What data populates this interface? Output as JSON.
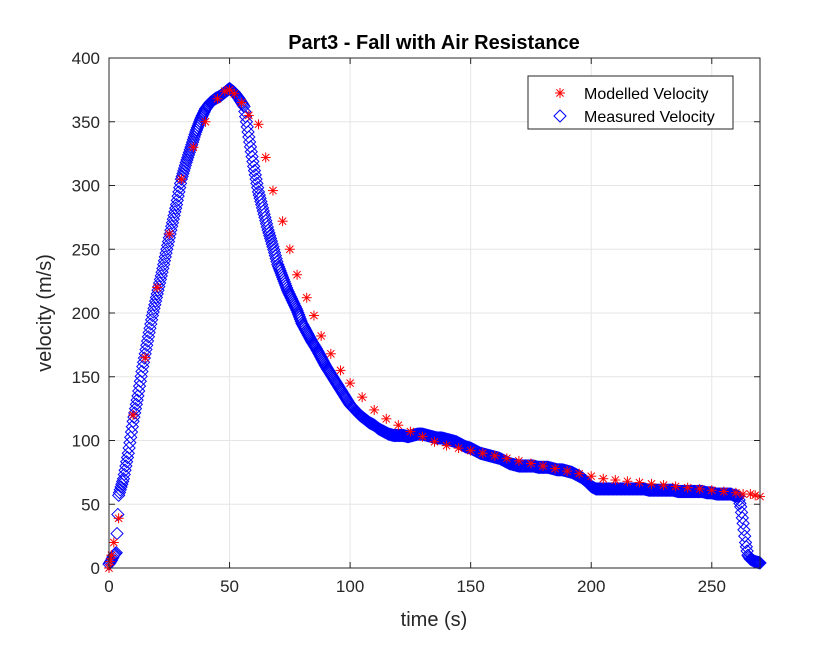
{
  "chart_data": {
    "type": "scatter",
    "title": "Part3 - Fall with Air Resistance",
    "xlabel": "time (s)",
    "ylabel": "velocity (m/s)",
    "xlim": [
      0,
      270
    ],
    "ylim": [
      0,
      400
    ],
    "xticks": [
      0,
      50,
      100,
      150,
      200,
      250
    ],
    "yticks": [
      0,
      50,
      100,
      150,
      200,
      250,
      300,
      350,
      400
    ],
    "xtick_labels": [
      "0",
      "50",
      "100",
      "150",
      "200",
      "250"
    ],
    "ytick_labels": [
      "0",
      "50",
      "100",
      "150",
      "200",
      "250",
      "300",
      "350",
      "400"
    ],
    "grid": true,
    "legend_position": "top-right",
    "series": [
      {
        "name": "Modelled Velocity",
        "marker": "asterisk",
        "color": "#ff0000",
        "x": [
          0,
          0.5,
          1,
          2,
          4,
          10,
          15,
          20,
          25,
          30,
          35,
          40,
          45,
          48,
          50,
          52,
          55,
          58,
          62,
          65,
          68,
          72,
          75,
          78,
          82,
          85,
          88,
          92,
          96,
          100,
          105,
          110,
          115,
          120,
          125,
          130,
          135,
          140,
          145,
          150,
          155,
          160,
          165,
          170,
          175,
          180,
          185,
          190,
          195,
          200,
          205,
          210,
          215,
          220,
          225,
          230,
          235,
          240,
          245,
          250,
          255,
          260,
          263,
          266,
          268,
          270
        ],
        "y": [
          0,
          5,
          10,
          20,
          39,
          120,
          165,
          220,
          262,
          305,
          330,
          350,
          368,
          374,
          375,
          372,
          365,
          355,
          348,
          322,
          296,
          272,
          250,
          230,
          212,
          198,
          182,
          168,
          155,
          145,
          134,
          124,
          117,
          112,
          107,
          103,
          99,
          96,
          94,
          92,
          90,
          88,
          86,
          84,
          82,
          80,
          78,
          76,
          74,
          72,
          70,
          69,
          68,
          67,
          66,
          65,
          64,
          63,
          62,
          61,
          60,
          59,
          58,
          58,
          57,
          56
        ]
      },
      {
        "name": "Measured Velocity",
        "marker": "diamond",
        "color": "#0000ff",
        "x": [
          0,
          1,
          2,
          3,
          4,
          6,
          8,
          10,
          12,
          14,
          16,
          18,
          20,
          22,
          24,
          26,
          28,
          30,
          32,
          34,
          36,
          38,
          40,
          42,
          44,
          46,
          48,
          50,
          52,
          54,
          56,
          58,
          60,
          62,
          64,
          66,
          68,
          70,
          72,
          74,
          76,
          78,
          80,
          82,
          84,
          86,
          88,
          90,
          92,
          94,
          96,
          98,
          100,
          102,
          104,
          106,
          108,
          110,
          112,
          114,
          116,
          118,
          120,
          122,
          124,
          126,
          128,
          130,
          132,
          134,
          136,
          138,
          140,
          142,
          144,
          146,
          148,
          150,
          152,
          154,
          156,
          158,
          160,
          162,
          164,
          166,
          168,
          170,
          172,
          174,
          176,
          178,
          180,
          182,
          184,
          186,
          188,
          190,
          192,
          194,
          196,
          198,
          200,
          202,
          204,
          206,
          208,
          210,
          212,
          214,
          216,
          218,
          220,
          222,
          224,
          226,
          228,
          230,
          232,
          234,
          236,
          238,
          240,
          242,
          244,
          246,
          248,
          250,
          252,
          254,
          256,
          258,
          259,
          260,
          261,
          262,
          263,
          264,
          265,
          266,
          268,
          270
        ],
        "y": [
          3,
          6,
          10,
          12,
          57,
          70,
          90,
          115,
          135,
          158,
          178,
          198,
          215,
          232,
          250,
          268,
          285,
          305,
          318,
          330,
          342,
          352,
          360,
          365,
          368,
          370,
          373,
          376,
          373,
          368,
          362,
          338,
          315,
          295,
          280,
          265,
          252,
          238,
          228,
          218,
          210,
          202,
          192,
          185,
          178,
          172,
          165,
          158,
          152,
          146,
          140,
          134,
          128,
          124,
          120,
          117,
          114,
          112,
          109,
          107,
          105,
          104,
          104,
          104,
          103,
          104,
          105,
          105,
          104,
          103,
          102,
          102,
          101,
          100,
          99,
          97,
          95,
          94,
          92,
          90,
          89,
          88,
          87,
          86,
          84,
          82,
          81,
          80,
          80,
          80,
          80,
          79,
          79,
          79,
          78,
          77,
          77,
          76,
          75,
          73,
          71,
          68,
          64,
          62,
          62,
          62,
          62,
          62,
          62,
          62,
          62,
          62,
          62,
          62,
          61,
          61,
          61,
          61,
          61,
          61,
          60,
          60,
          60,
          60,
          60,
          60,
          59,
          59,
          58,
          58,
          58,
          58,
          57,
          57,
          56,
          48,
          35,
          20,
          10,
          7,
          5,
          4
        ]
      }
    ]
  }
}
